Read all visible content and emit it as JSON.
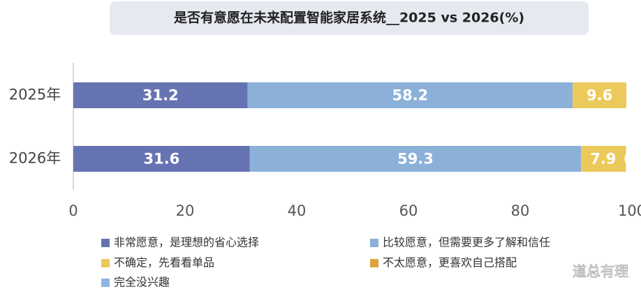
{
  "chart_data": {
    "type": "stacked-barh",
    "title": "是否有意愿在未来配置智能家居系统__2025 vs 2026(%)",
    "categories": [
      "2025年",
      "2026年"
    ],
    "series": [
      {
        "name": "非常愿意，是理想的省心选择",
        "color": "#6673b3",
        "values": [
          31.2,
          31.6
        ]
      },
      {
        "name": "比较愿意，但需要更多了解和信任",
        "color": "#8bb1d9",
        "values": [
          58.2,
          59.3
        ]
      },
      {
        "name": "不确定，先看看单品",
        "color": "#ecc95b",
        "values": [
          9.6,
          7.9
        ]
      },
      {
        "name": "不太愿意，更喜欢自己搭配",
        "color": "#dea23f",
        "values": [
          0,
          0.1
        ]
      },
      {
        "name": "完全没兴趣",
        "color": "#8fb5df",
        "values": [
          null,
          null
        ]
      }
    ],
    "xlim": [
      0,
      100
    ],
    "xticks": [
      0,
      20,
      40,
      60,
      80,
      100
    ],
    "watermark": "道总有理"
  }
}
